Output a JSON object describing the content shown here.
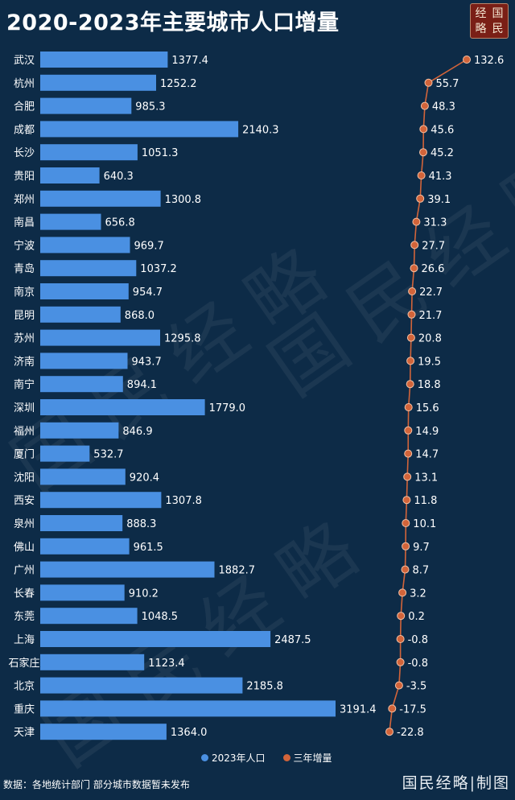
{
  "header": {
    "title": "2020-2023年主要城市人口增量",
    "logo_chars": [
      "经",
      "国",
      "略",
      "民"
    ]
  },
  "legend": {
    "pop_label": "2023年人口",
    "inc_label": "三年增量",
    "pop_color": "#4a90e2",
    "inc_color": "#d2643a"
  },
  "footer": {
    "source": "数据：各地统计部门 部分城市数据暂未发布",
    "brand": "国民经略|制图"
  },
  "watermark_text": "国民经略",
  "chart_data": {
    "type": "bar",
    "categories": [
      "武汉",
      "杭州",
      "合肥",
      "成都",
      "长沙",
      "贵阳",
      "郑州",
      "南昌",
      "宁波",
      "青岛",
      "南京",
      "昆明",
      "苏州",
      "济南",
      "南宁",
      "深圳",
      "福州",
      "厦门",
      "沈阳",
      "西安",
      "泉州",
      "佛山",
      "广州",
      "长春",
      "东莞",
      "上海",
      "石家庄",
      "北京",
      "重庆",
      "天津"
    ],
    "series": [
      {
        "name": "2023年人口",
        "type": "bar",
        "values": [
          1377.4,
          1252.2,
          985.3,
          2140.3,
          1051.3,
          640.3,
          1300.8,
          656.8,
          969.7,
          1037.2,
          954.7,
          868.0,
          1295.8,
          943.7,
          894.1,
          1779.0,
          846.9,
          532.7,
          920.4,
          1307.8,
          888.3,
          961.5,
          1882.7,
          910.2,
          1048.5,
          2487.5,
          1123.4,
          2185.8,
          3191.4,
          1364.0
        ],
        "labels": [
          "1377.4",
          "1252.2",
          "985.3",
          "2140.3",
          "1051.3",
          "640.3",
          "1300.8",
          "656.8",
          "969.7",
          "1037.2",
          "954.7",
          "868.0",
          "1295.8",
          "943.7",
          "894.1",
          "1779.0",
          "846.9",
          "532.7",
          "920.4",
          "1307.8",
          "888.3",
          "961.5",
          "1882.7",
          "910.2",
          "1048.5",
          "2487.5",
          "1123.4",
          "2185.8",
          "3191.4",
          "1364.0"
        ]
      },
      {
        "name": "三年增量",
        "type": "line",
        "values": [
          132.6,
          55.7,
          48.3,
          45.6,
          45.2,
          41.3,
          39.1,
          31.3,
          27.7,
          26.6,
          22.7,
          21.7,
          20.8,
          19.5,
          18.8,
          15.6,
          14.9,
          14.7,
          13.1,
          11.8,
          10.1,
          9.7,
          8.7,
          3.2,
          0.2,
          -0.8,
          -0.8,
          -3.5,
          -17.5,
          -22.8
        ],
        "labels": [
          "132.6",
          "55.7",
          "48.3",
          "45.6",
          "45.2",
          "41.3",
          "39.1",
          "31.3",
          "27.7",
          "26.6",
          "22.7",
          "21.7",
          "20.8",
          "19.5",
          "18.8",
          "15.6",
          "14.9",
          "14.7",
          "13.1",
          "11.8",
          "10.1",
          "9.7",
          "8.7",
          "3.2",
          "0.2",
          "-0.8",
          "-0.8",
          "-3.5",
          "-17.5",
          "-22.8"
        ]
      }
    ],
    "legend_position": "bottom-center",
    "grid": false
  }
}
